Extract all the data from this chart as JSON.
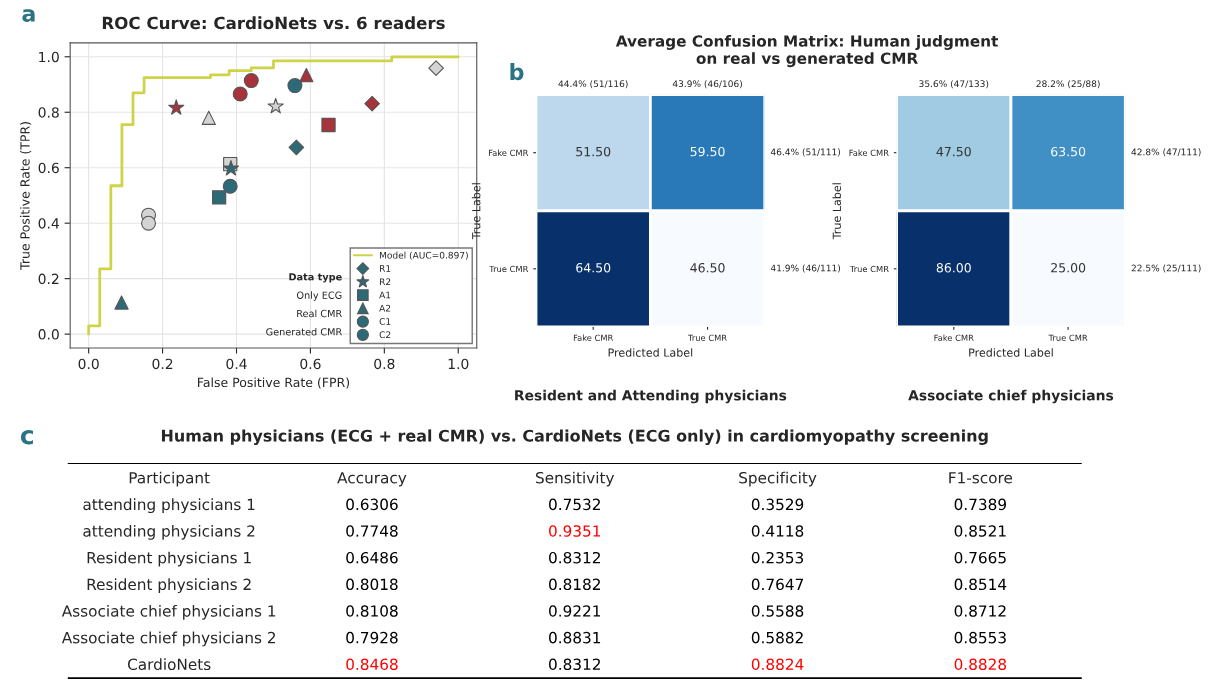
{
  "chart_data": [
    {
      "type": "scatter",
      "title": "ROC Curve: CardioNets vs. 6 readers",
      "xlabel": "False Positive Rate (FPR)",
      "ylabel": "True Positive Rate (TPR)",
      "legend_title": "Data type",
      "xlim": [
        -0.05,
        1.05
      ],
      "ylim": [
        -0.05,
        1.05
      ],
      "xticks": [
        {
          "value": 0,
          "label": "0.0"
        },
        0.2,
        0.4,
        0.6,
        0.8,
        {
          "value": 1,
          "label": "1.0"
        }
      ],
      "yticks": [
        {
          "value": 0,
          "label": "0.0"
        },
        0.2,
        0.4,
        0.6,
        0.8,
        {
          "value": 1,
          "label": "1.0"
        }
      ],
      "grid": true,
      "legend": "bottom right",
      "annotations": [
        "a",
        "Only ECG",
        "Real CMR",
        "Generated CMR"
      ],
      "series": [
        {
          "type": "step",
          "name": "Model (AUC=0.897)",
          "color": "#cfd34a",
          "x": [
            0,
            0,
            0.03,
            0.06,
            0.09,
            0.12,
            0.15,
            0.33,
            0.38,
            0.44,
            0.5,
            0.82,
            1.0
          ],
          "values": [
            0,
            0.03,
            0.235,
            0.535,
            0.755,
            0.87,
            0.925,
            0.935,
            0.95,
            0.96,
            0.985,
            1.0,
            1.0
          ]
        },
        {
          "type": "scatter",
          "name": "R1",
          "marker": "diamond",
          "x": [
            0.562,
            0.767,
            0.94
          ],
          "values": [
            0.673,
            0.831,
            0.959
          ],
          "colors": [
            "#2c6a78",
            "#a8333a",
            "#d4d4d4"
          ]
        },
        {
          "type": "scatter",
          "name": "R2",
          "marker": "star",
          "x": [
            0.385,
            0.237,
            0.506
          ],
          "values": [
            0.597,
            0.816,
            0.821
          ],
          "colors": [
            "#2c6a78",
            "#a8333a",
            "#d4d4d4"
          ]
        },
        {
          "type": "scatter",
          "name": "A1",
          "marker": "square",
          "x": [
            0.353,
            0.649,
            0.383
          ],
          "values": [
            0.493,
            0.754,
            0.613
          ],
          "colors": [
            "#2c6a78",
            "#a8333a",
            "#d4d4d4"
          ]
        },
        {
          "type": "scatter",
          "name": "A2",
          "marker": "triangle",
          "x": [
            0.089,
            0.589,
            0.325
          ],
          "values": [
            0.114,
            0.934,
            0.78
          ],
          "colors": [
            "#2c6a78",
            "#a8333a",
            "#d4d4d4"
          ]
        },
        {
          "type": "scatter",
          "name": "C1",
          "marker": "circle",
          "x": [
            0.383,
            0.41,
            0.162
          ],
          "values": [
            0.533,
            0.866,
            0.429
          ],
          "colors": [
            "#2c6a78",
            "#a8333a",
            "#d4d4d4"
          ]
        },
        {
          "type": "scatter",
          "name": "C2",
          "marker": "circle",
          "x": [
            0.558,
            0.44,
            0.162
          ],
          "values": [
            0.896,
            0.914,
            0.4
          ],
          "colors": [
            "#2c6a78",
            "#a8333a",
            "#d4d4d4"
          ]
        }
      ]
    },
    {
      "type": "heatmap",
      "title": "Average Confusion Matrix: Human judgment\non real vs generated CMR",
      "subtitle": "Resident and Attending physicians",
      "xlabel": "Predicted Label",
      "ylabel": "True Label",
      "categories": [
        "Fake CMR",
        "True CMR"
      ],
      "y_categories": [
        "Fake CMR",
        "True CMR"
      ],
      "cells": [
        [
          51.5,
          59.5
        ],
        [
          64.5,
          46.5
        ]
      ],
      "cell_labels": [
        [
          "51.50",
          "59.50"
        ],
        [
          "64.50",
          "46.50"
        ]
      ],
      "annotations": [
        "b",
        "44.4% (51/116)",
        "43.9% (46/106)",
        "46.4% (51/111)",
        "41.9% (46/111)"
      ]
    },
    {
      "type": "heatmap",
      "subtitle": "Associate chief physicians",
      "xlabel": "Predicted Label",
      "ylabel": "True Label",
      "categories": [
        "Fake CMR",
        "True CMR"
      ],
      "y_categories": [
        "Fake CMR",
        "True CMR"
      ],
      "cells": [
        [
          47.5,
          63.5
        ],
        [
          86.0,
          25.0
        ]
      ],
      "cell_labels": [
        [
          "47.50",
          "63.50"
        ],
        [
          "86.00",
          "25.00"
        ]
      ],
      "annotations": [
        "35.6% (47/133)",
        "28.2% (25/88)",
        "42.8% (47/111)",
        "22.5% (25/111)"
      ]
    },
    {
      "type": "other",
      "title": "Human physicians (ECG + real CMR) vs. CardioNets (ECG only) in cardiomyopathy screening",
      "annotations": [
        "c"
      ],
      "categories": [
        "Participant",
        "Accuracy",
        "Sensitivity",
        "Specificity",
        "F1-score"
      ],
      "y_categories": [
        "attending physicians 1",
        "attending physicians 2",
        "Resident physicians 1",
        "Resident physicians 2",
        "Associate chief physicians 1",
        "Associate chief physicians 2",
        "CardioNets"
      ],
      "cell_labels": [
        [
          "0.6306",
          "0.7532",
          "0.3529",
          "0.7389"
        ],
        [
          "0.7748",
          "0.9351",
          "0.4118",
          "0.8521"
        ],
        [
          "0.6486",
          "0.8312",
          "0.2353",
          "0.7665"
        ],
        [
          "0.8018",
          "0.8182",
          "0.7647",
          "0.8514"
        ],
        [
          "0.8108",
          "0.9221",
          "0.5588",
          "0.8712"
        ],
        [
          "0.7928",
          "0.8831",
          "0.5882",
          "0.8553"
        ],
        [
          "0.8468",
          "0.8312",
          "0.8824",
          "0.8828"
        ]
      ],
      "colors": [
        [
          "#000000",
          "#000000",
          "#000000",
          "#000000"
        ],
        [
          "#000000",
          "#ff0000",
          "#000000",
          "#000000"
        ],
        [
          "#000000",
          "#000000",
          "#000000",
          "#000000"
        ],
        [
          "#000000",
          "#000000",
          "#000000",
          "#000000"
        ],
        [
          "#000000",
          "#000000",
          "#000000",
          "#000000"
        ],
        [
          "#000000",
          "#000000",
          "#000000",
          "#000000"
        ],
        [
          "#ff0000",
          "#000000",
          "#ff0000",
          "#ff0000"
        ]
      ]
    }
  ]
}
